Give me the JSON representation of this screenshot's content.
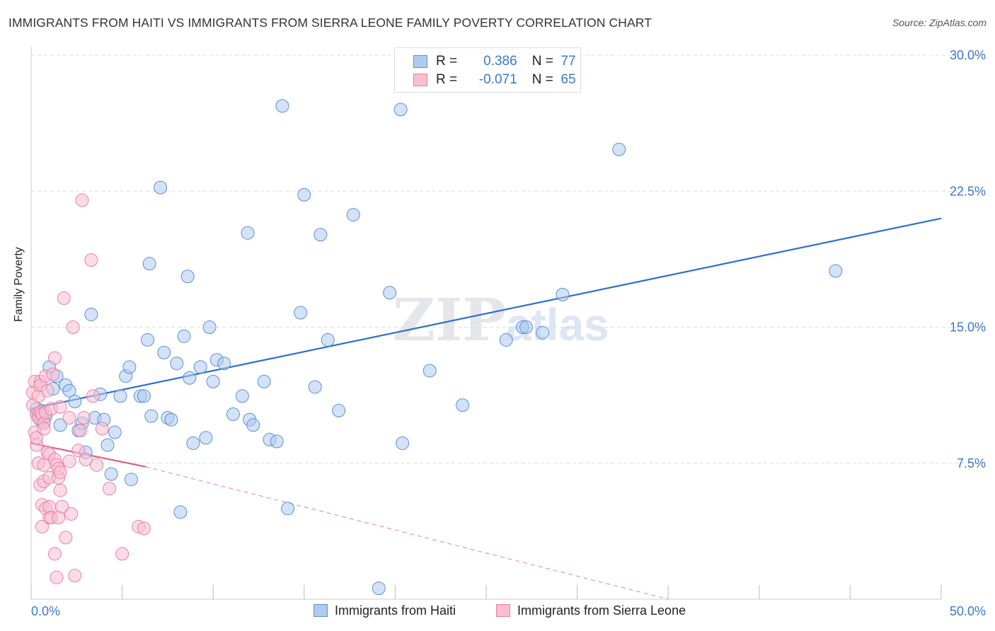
{
  "title": "IMMIGRANTS FROM HAITI VS IMMIGRANTS FROM SIERRA LEONE FAMILY POVERTY CORRELATION CHART",
  "source": "Source: ZipAtlas.com",
  "watermark": {
    "zip": "ZIP",
    "atlas": "atlas"
  },
  "legend": {
    "haiti": {
      "r_label": "R =",
      "r_value": "0.386",
      "n_label": "N =",
      "n_value": "77"
    },
    "sierra_leone": {
      "r_label": "R =",
      "r_value": "-0.071",
      "n_label": "N =",
      "n_value": "65"
    }
  },
  "colors": {
    "haiti_fill": "#aecbf0",
    "haiti_stroke": "#5a90d6",
    "haiti_line": "#2d6fcd",
    "sl_fill": "#f8bfd2",
    "sl_stroke": "#e97fa3",
    "sl_line": "#e0608b",
    "grid": "#dddddd",
    "tick_label": "#3a78c9"
  },
  "chart_data": {
    "type": "scatter",
    "title": "IMMIGRANTS FROM HAITI VS IMMIGRANTS FROM SIERRA LEONE FAMILY POVERTY CORRELATION CHART",
    "xlabel": "",
    "ylabel": "Family Poverty",
    "xlim": [
      0,
      50
    ],
    "ylim": [
      0,
      30
    ],
    "x_tick_labels": [
      "0.0%",
      "50.0%"
    ],
    "y_ticks": [
      7.5,
      15.0,
      22.5,
      30.0
    ],
    "y_tick_labels": [
      "7.5%",
      "15.0%",
      "22.5%",
      "30.0%"
    ],
    "grid": true,
    "legend_position": "top-center",
    "series": [
      {
        "name": "Immigrants from Haiti",
        "R": 0.386,
        "N": 77,
        "trend": {
          "x": [
            0,
            50
          ],
          "y": [
            10.5,
            21.0
          ],
          "dashed_extension": false
        },
        "points": [
          [
            0.3,
            10.5
          ],
          [
            0.4,
            10.2
          ],
          [
            0.5,
            9.9
          ],
          [
            0.6,
            10.4
          ],
          [
            0.7,
            9.8
          ],
          [
            0.8,
            10.1
          ],
          [
            1.0,
            12.8
          ],
          [
            1.2,
            11.6
          ],
          [
            1.4,
            12.3
          ],
          [
            1.6,
            9.6
          ],
          [
            1.9,
            11.8
          ],
          [
            2.1,
            11.5
          ],
          [
            2.4,
            10.9
          ],
          [
            2.6,
            9.3
          ],
          [
            2.8,
            9.7
          ],
          [
            3.0,
            8.1
          ],
          [
            3.3,
            15.7
          ],
          [
            3.5,
            10.0
          ],
          [
            3.8,
            11.3
          ],
          [
            4.0,
            9.9
          ],
          [
            4.2,
            8.5
          ],
          [
            4.4,
            6.9
          ],
          [
            4.6,
            9.2
          ],
          [
            4.9,
            11.2
          ],
          [
            5.2,
            12.3
          ],
          [
            5.4,
            12.8
          ],
          [
            5.5,
            6.6
          ],
          [
            6.0,
            11.2
          ],
          [
            6.2,
            11.2
          ],
          [
            6.4,
            14.3
          ],
          [
            6.5,
            18.5
          ],
          [
            6.6,
            10.1
          ],
          [
            7.1,
            22.7
          ],
          [
            7.3,
            13.6
          ],
          [
            7.5,
            10.0
          ],
          [
            7.7,
            9.9
          ],
          [
            8.0,
            13.0
          ],
          [
            8.2,
            4.8
          ],
          [
            8.4,
            14.5
          ],
          [
            8.6,
            17.8
          ],
          [
            8.7,
            12.2
          ],
          [
            8.9,
            8.6
          ],
          [
            9.3,
            12.8
          ],
          [
            9.6,
            8.9
          ],
          [
            9.8,
            15.0
          ],
          [
            10.0,
            12.0
          ],
          [
            10.2,
            13.2
          ],
          [
            10.6,
            13.0
          ],
          [
            11.1,
            10.2
          ],
          [
            11.6,
            11.2
          ],
          [
            11.9,
            20.2
          ],
          [
            12.0,
            9.9
          ],
          [
            12.2,
            9.6
          ],
          [
            12.8,
            12.0
          ],
          [
            13.1,
            8.8
          ],
          [
            13.5,
            8.7
          ],
          [
            13.8,
            27.2
          ],
          [
            14.1,
            5.0
          ],
          [
            14.8,
            15.8
          ],
          [
            15.0,
            22.3
          ],
          [
            15.6,
            11.7
          ],
          [
            15.9,
            20.1
          ],
          [
            16.3,
            14.3
          ],
          [
            16.9,
            10.4
          ],
          [
            17.7,
            21.2
          ],
          [
            19.1,
            0.6
          ],
          [
            19.7,
            16.9
          ],
          [
            20.3,
            27.0
          ],
          [
            20.4,
            8.6
          ],
          [
            21.9,
            12.6
          ],
          [
            23.7,
            10.7
          ],
          [
            26.1,
            14.3
          ],
          [
            27.0,
            15.0
          ],
          [
            27.2,
            15.0
          ],
          [
            28.1,
            14.7
          ],
          [
            29.2,
            16.8
          ],
          [
            32.3,
            24.8
          ],
          [
            44.2,
            18.1
          ]
        ]
      },
      {
        "name": "Immigrants from Sierra Leone",
        "R": -0.071,
        "N": 65,
        "trend": {
          "x": [
            0,
            6.3
          ],
          "y": [
            8.6,
            7.3
          ],
          "dashed_extension": {
            "x": [
              6.3,
              35.0
            ],
            "y": [
              7.3,
              0.0
            ]
          }
        },
        "points": [
          [
            0.1,
            11.4
          ],
          [
            0.1,
            10.7
          ],
          [
            0.2,
            9.2
          ],
          [
            0.2,
            12.0
          ],
          [
            0.3,
            10.2
          ],
          [
            0.3,
            8.5
          ],
          [
            0.3,
            8.9
          ],
          [
            0.4,
            11.2
          ],
          [
            0.4,
            7.5
          ],
          [
            0.4,
            10.0
          ],
          [
            0.5,
            12.0
          ],
          [
            0.5,
            11.8
          ],
          [
            0.5,
            10.3
          ],
          [
            0.5,
            6.3
          ],
          [
            0.6,
            10.2
          ],
          [
            0.6,
            5.2
          ],
          [
            0.6,
            4.0
          ],
          [
            0.7,
            9.7
          ],
          [
            0.7,
            9.4
          ],
          [
            0.7,
            6.5
          ],
          [
            0.7,
            7.4
          ],
          [
            0.8,
            12.3
          ],
          [
            0.8,
            10.3
          ],
          [
            0.8,
            5.0
          ],
          [
            0.9,
            11.5
          ],
          [
            0.9,
            8.1
          ],
          [
            1.0,
            8.0
          ],
          [
            1.0,
            6.7
          ],
          [
            1.0,
            4.5
          ],
          [
            1.0,
            5.1
          ],
          [
            1.1,
            10.5
          ],
          [
            1.1,
            4.5
          ],
          [
            1.2,
            12.4
          ],
          [
            1.3,
            13.3
          ],
          [
            1.3,
            7.7
          ],
          [
            1.3,
            2.5
          ],
          [
            1.4,
            1.2
          ],
          [
            1.4,
            7.4
          ],
          [
            1.5,
            6.7
          ],
          [
            1.5,
            7.2
          ],
          [
            1.5,
            4.5
          ],
          [
            1.6,
            10.6
          ],
          [
            1.6,
            7.0
          ],
          [
            1.6,
            6.0
          ],
          [
            1.7,
            5.1
          ],
          [
            1.8,
            16.6
          ],
          [
            1.9,
            3.4
          ],
          [
            2.1,
            7.6
          ],
          [
            2.1,
            10.0
          ],
          [
            2.2,
            4.7
          ],
          [
            2.3,
            15.0
          ],
          [
            2.4,
            1.3
          ],
          [
            2.6,
            8.2
          ],
          [
            2.7,
            9.3
          ],
          [
            2.8,
            22.0
          ],
          [
            2.9,
            10.0
          ],
          [
            3.0,
            7.7
          ],
          [
            3.3,
            18.7
          ],
          [
            3.4,
            11.2
          ],
          [
            3.6,
            7.4
          ],
          [
            3.9,
            9.4
          ],
          [
            4.3,
            6.1
          ],
          [
            5.0,
            2.5
          ],
          [
            5.9,
            4.0
          ],
          [
            6.2,
            3.9
          ]
        ]
      }
    ]
  },
  "bottom_legend": {
    "haiti_label": "Immigrants from Haiti",
    "sl_label": "Immigrants from Sierra Leone"
  }
}
